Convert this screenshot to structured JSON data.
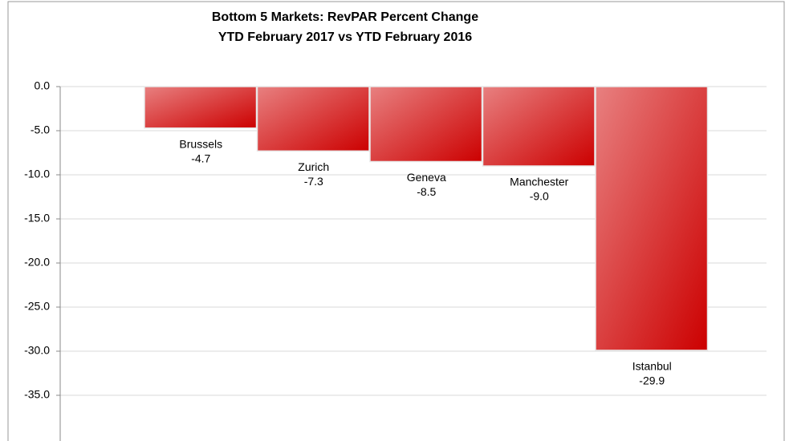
{
  "chart_data": {
    "type": "bar",
    "title": "Bottom 5 Markets: RevPAR Percent Change",
    "subtitle": "YTD February 2017 vs YTD February 2016",
    "categories": [
      "Brussels",
      "Zurich",
      "Geneva",
      "Manchester",
      "Istanbul"
    ],
    "values": [
      -4.7,
      -7.3,
      -8.5,
      -9.0,
      -29.9
    ],
    "value_labels": [
      "-4.7",
      "-7.3",
      "-8.5",
      "-9.0",
      "-29.9"
    ],
    "color": "#d42020",
    "ylim": [
      0,
      -35
    ],
    "yticks": [
      {
        "value": 0,
        "label": "0.0"
      },
      {
        "value": -5,
        "label": "-5.0"
      },
      {
        "value": -10,
        "label": "-10.0"
      },
      {
        "value": -15,
        "label": "-15.0"
      },
      {
        "value": -20,
        "label": "-20.0"
      },
      {
        "value": -25,
        "label": "-25.0"
      },
      {
        "value": -30,
        "label": "-30.0"
      },
      {
        "value": -35,
        "label": "-35.0"
      }
    ],
    "grid": true
  }
}
